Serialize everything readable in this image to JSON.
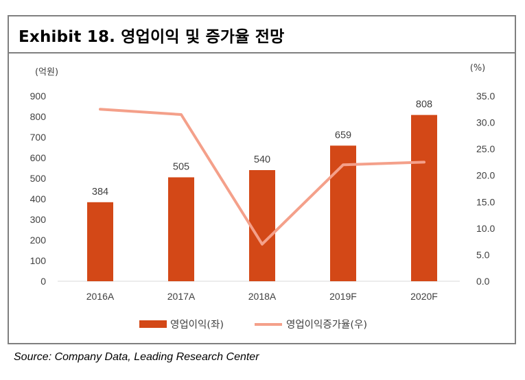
{
  "title": "Exhibit 18.  영업이익 및 증가율 전망",
  "source": "Source: Company Data, Leading Research Center",
  "chart_data": {
    "type": "bar",
    "categories": [
      "2016A",
      "2017A",
      "2018A",
      "2019F",
      "2020F"
    ],
    "left_axis": {
      "unit_label": "(억원)",
      "range": [
        0,
        900
      ],
      "ticks": [
        "0",
        "100",
        "200",
        "300",
        "400",
        "500",
        "600",
        "700",
        "800",
        "900"
      ]
    },
    "right_axis": {
      "unit_label": "(%)",
      "range": [
        0,
        35
      ],
      "ticks": [
        "0.0",
        "5.0",
        "10.0",
        "15.0",
        "20.0",
        "25.0",
        "30.0",
        "35.0"
      ]
    },
    "series": [
      {
        "name": "영업이익(좌)",
        "type": "bar",
        "axis": "left",
        "color": "#d34817",
        "values": [
          384,
          505,
          540,
          659,
          808
        ],
        "labels": [
          "384",
          "505",
          "540",
          "659",
          "808"
        ]
      },
      {
        "name": "영업이익증가율(우)",
        "type": "line",
        "axis": "right",
        "color": "#f4a08a",
        "values": [
          32.5,
          31.5,
          7.0,
          22.0,
          22.5
        ]
      }
    ],
    "grid": false,
    "legend_position": "bottom"
  }
}
